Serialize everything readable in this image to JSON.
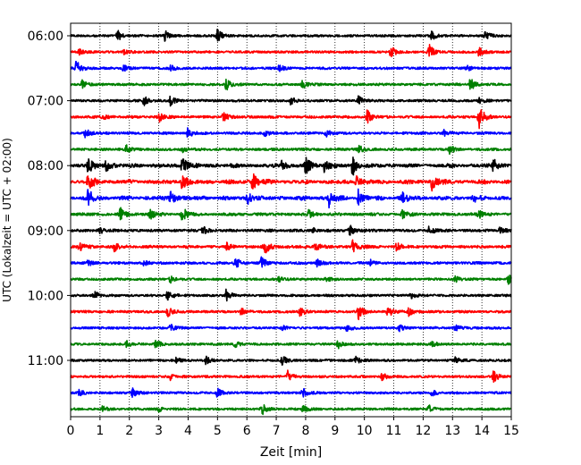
{
  "chart_data": {
    "type": "line",
    "title": "",
    "xlabel": "Zeit  [min]",
    "ylabel": "UTC (Lokalzeit = UTC + 02:00)",
    "xlim": [
      0,
      15
    ],
    "x_ticks": [
      0,
      1,
      2,
      3,
      4,
      5,
      6,
      7,
      8,
      9,
      10,
      11,
      12,
      13,
      14,
      15
    ],
    "x_tick_labels": [
      "0",
      "1",
      "2",
      "3",
      "4",
      "5",
      "6",
      "7",
      "8",
      "9",
      "10",
      "11",
      "12",
      "13",
      "14",
      "15"
    ],
    "y_tick_labels": [
      "06:00",
      "07:00",
      "08:00",
      "09:00",
      "10:00",
      "11:00"
    ],
    "y_tick_trace_index": [
      0,
      4,
      8,
      12,
      16,
      20
    ],
    "grid": "vertical-dotted",
    "trace_minutes": 15,
    "trace_colors": [
      "#000000",
      "#ff0000",
      "#0000ff",
      "#008000"
    ],
    "traces": [
      {
        "start": "06:00",
        "events": [
          [
            1.6,
            0.7
          ],
          [
            3.2,
            0.8
          ],
          [
            5.0,
            1.0
          ],
          [
            12.3,
            0.6
          ],
          [
            14.1,
            0.7
          ]
        ],
        "burst": 0.1
      },
      {
        "start": "06:15",
        "events": [
          [
            0.3,
            0.4
          ],
          [
            1.8,
            0.3
          ],
          [
            10.9,
            0.8
          ],
          [
            12.2,
            1.3
          ],
          [
            13.9,
            0.6
          ]
        ],
        "burst": 0.1
      },
      {
        "start": "06:30",
        "events": [
          [
            0.2,
            1.2
          ],
          [
            1.8,
            0.4
          ],
          [
            3.4,
            0.4
          ],
          [
            7.1,
            0.4
          ],
          [
            13.5,
            0.4
          ]
        ],
        "burst": 0.12
      },
      {
        "start": "06:45",
        "events": [
          [
            0.4,
            0.6
          ],
          [
            5.3,
            0.8
          ],
          [
            7.9,
            0.5
          ],
          [
            13.6,
            0.9
          ]
        ],
        "burst": 0.12
      },
      {
        "start": "07:00",
        "events": [
          [
            2.5,
            0.7
          ],
          [
            3.4,
            0.6
          ],
          [
            7.5,
            0.5
          ],
          [
            9.8,
            0.6
          ],
          [
            13.9,
            0.4
          ]
        ],
        "burst": 0.12
      },
      {
        "start": "07:15",
        "events": [
          [
            1.1,
            0.4
          ],
          [
            3.0,
            0.8
          ],
          [
            5.2,
            0.6
          ],
          [
            10.1,
            0.9
          ],
          [
            13.9,
            1.9
          ]
        ],
        "burst": 0.15
      },
      {
        "start": "07:30",
        "events": [
          [
            0.5,
            0.6
          ],
          [
            4.0,
            0.8
          ],
          [
            6.6,
            0.4
          ],
          [
            8.7,
            0.5
          ],
          [
            12.7,
            0.4
          ]
        ],
        "burst": 0.15
      },
      {
        "start": "07:45",
        "events": [
          [
            1.9,
            0.5
          ],
          [
            3.8,
            0.4
          ],
          [
            9.8,
            0.6
          ],
          [
            12.9,
            0.7
          ]
        ],
        "burst": 0.15
      },
      {
        "start": "08:00",
        "events": [
          [
            0.6,
            1.1
          ],
          [
            1.2,
            0.9
          ],
          [
            3.8,
            1.5
          ],
          [
            7.2,
            0.8
          ],
          [
            8.0,
            1.2
          ],
          [
            8.6,
            1.1
          ],
          [
            9.6,
            1.4
          ],
          [
            14.4,
            1.0
          ]
        ],
        "burst": 0.45
      },
      {
        "start": "08:15",
        "events": [
          [
            0.6,
            1.5
          ],
          [
            3.8,
            1.1
          ],
          [
            6.2,
            1.3
          ],
          [
            9.7,
            1.0
          ],
          [
            12.3,
            1.2
          ]
        ],
        "burst": 0.5
      },
      {
        "start": "08:30",
        "events": [
          [
            0.6,
            1.3
          ],
          [
            3.4,
            1.1
          ],
          [
            6.0,
            1.0
          ],
          [
            8.8,
            1.3
          ],
          [
            9.8,
            1.2
          ],
          [
            11.3,
            0.9
          ],
          [
            13.7,
            0.6
          ]
        ],
        "burst": 0.5
      },
      {
        "start": "08:45",
        "events": [
          [
            1.7,
            0.8
          ],
          [
            2.7,
            0.7
          ],
          [
            3.8,
            1.1
          ],
          [
            8.1,
            0.6
          ],
          [
            11.3,
            0.5
          ],
          [
            13.9,
            0.6
          ]
        ],
        "burst": 0.25
      },
      {
        "start": "09:00",
        "events": [
          [
            1.0,
            0.4
          ],
          [
            4.5,
            0.6
          ],
          [
            8.2,
            0.5
          ],
          [
            9.5,
            0.7
          ],
          [
            12.2,
            0.6
          ],
          [
            14.6,
            0.5
          ]
        ],
        "burst": 0.2
      },
      {
        "start": "09:15",
        "events": [
          [
            0.3,
            0.6
          ],
          [
            1.5,
            0.6
          ],
          [
            5.3,
            0.5
          ],
          [
            6.6,
            1.2
          ],
          [
            8.3,
            0.8
          ],
          [
            9.6,
            0.9
          ],
          [
            11.1,
            0.5
          ]
        ],
        "burst": 0.25
      },
      {
        "start": "09:30",
        "events": [
          [
            0.6,
            0.4
          ],
          [
            2.5,
            0.3
          ],
          [
            5.6,
            0.9
          ],
          [
            6.5,
            0.8
          ],
          [
            8.4,
            0.6
          ],
          [
            10.2,
            0.4
          ]
        ],
        "burst": 0.15
      },
      {
        "start": "09:45",
        "events": [
          [
            3.4,
            0.5
          ],
          [
            7.1,
            0.4
          ],
          [
            8.7,
            0.3
          ],
          [
            13.1,
            0.4
          ],
          [
            14.9,
            0.6
          ]
        ],
        "burst": 0.1
      },
      {
        "start": "10:00",
        "events": [
          [
            0.8,
            0.6
          ],
          [
            3.3,
            1.0
          ],
          [
            5.3,
            0.8
          ],
          [
            11.6,
            0.5
          ]
        ],
        "burst": 0.1
      },
      {
        "start": "10:15",
        "events": [
          [
            3.3,
            0.7
          ],
          [
            5.8,
            0.5
          ],
          [
            7.8,
            0.7
          ],
          [
            9.8,
            1.0
          ],
          [
            10.8,
            0.8
          ],
          [
            11.5,
            0.6
          ]
        ],
        "burst": 0.12
      },
      {
        "start": "10:30",
        "events": [
          [
            3.4,
            0.5
          ],
          [
            7.2,
            0.3
          ],
          [
            9.4,
            0.5
          ],
          [
            11.2,
            0.4
          ],
          [
            13.1,
            0.4
          ]
        ],
        "burst": 0.1
      },
      {
        "start": "10:45",
        "events": [
          [
            1.9,
            0.5
          ],
          [
            2.9,
            0.6
          ],
          [
            5.6,
            0.4
          ],
          [
            9.1,
            0.6
          ],
          [
            12.3,
            0.4
          ]
        ],
        "burst": 0.1
      },
      {
        "start": "11:00",
        "events": [
          [
            3.6,
            0.4
          ],
          [
            4.6,
            0.5
          ],
          [
            7.2,
            0.6
          ],
          [
            9.7,
            0.5
          ],
          [
            13.1,
            0.4
          ]
        ],
        "burst": 0.1
      },
      {
        "start": "11:15",
        "events": [
          [
            3.4,
            0.4
          ],
          [
            7.4,
            0.8
          ],
          [
            10.6,
            0.5
          ],
          [
            14.4,
            0.7
          ]
        ],
        "burst": 0.1
      },
      {
        "start": "11:30",
        "events": [
          [
            0.3,
            0.4
          ],
          [
            2.1,
            0.6
          ],
          [
            5.0,
            0.6
          ],
          [
            7.9,
            0.7
          ],
          [
            12.3,
            0.4
          ]
        ],
        "burst": 0.1
      },
      {
        "start": "11:45",
        "events": [
          [
            1.1,
            0.4
          ],
          [
            3.0,
            0.3
          ],
          [
            6.5,
            1.0
          ],
          [
            7.9,
            0.6
          ],
          [
            12.2,
            0.5
          ]
        ],
        "burst": 0.1
      }
    ]
  }
}
